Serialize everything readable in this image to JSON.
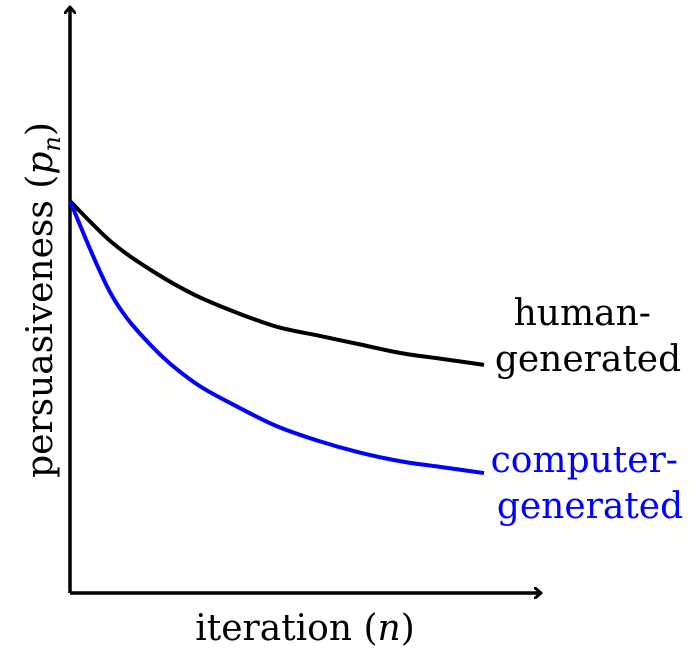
{
  "chart_data": {
    "type": "line",
    "xlabel": "iteration",
    "xlabel_var": "n",
    "ylabel": "persuasiveness",
    "ylabel_var": "p",
    "ylabel_sub": "n",
    "xlim": [
      0,
      1
    ],
    "ylim": [
      0,
      1
    ],
    "grid": false,
    "legend": "inline labels at right end of each line",
    "x": [
      0,
      0.1,
      0.2,
      0.3,
      0.4,
      0.5,
      0.6,
      0.7,
      0.8,
      0.9,
      1.0
    ],
    "series": [
      {
        "name_line1": "human-",
        "name_line2": "generated",
        "color": "#000000",
        "values": [
          0.67,
          0.6,
          0.55,
          0.51,
          0.48,
          0.455,
          0.44,
          0.425,
          0.41,
          0.4,
          0.39
        ]
      },
      {
        "name_line1": "computer-",
        "name_line2": "generated",
        "color": "#0000ff",
        "values": [
          0.67,
          0.51,
          0.42,
          0.36,
          0.32,
          0.285,
          0.26,
          0.24,
          0.225,
          0.215,
          0.205
        ]
      }
    ]
  }
}
